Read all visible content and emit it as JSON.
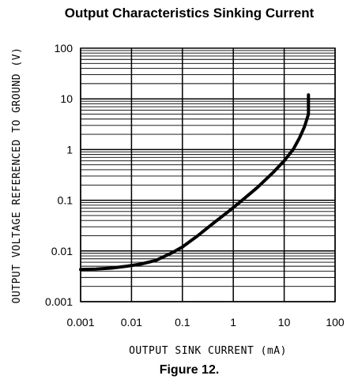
{
  "title": "Output Characteristics Sinking Current",
  "caption": "Figure 12.",
  "chart_data": {
    "type": "line",
    "title": "Output Characteristics Sinking Current",
    "xlabel": "OUTPUT SINK CURRENT (mA)",
    "ylabel": "OUTPUT VOLTAGE REFERENCED TO GROUND (V)",
    "xscale": "log",
    "yscale": "log",
    "xlim": [
      0.001,
      100
    ],
    "ylim": [
      0.001,
      100
    ],
    "xticks": [
      "0.001",
      "0.01",
      "0.1",
      "1",
      "10",
      "100"
    ],
    "yticks": [
      "0.001",
      "0.01",
      "0.1",
      "1",
      "10",
      "100"
    ],
    "grid": true,
    "series": [
      {
        "x": [
          0.001,
          0.002,
          0.004,
          0.008,
          0.015,
          0.03,
          0.06,
          0.1,
          0.2,
          0.4,
          0.8,
          1.5,
          3,
          6,
          10,
          15,
          20,
          25,
          28,
          30,
          30,
          30
        ],
        "y": [
          0.0043,
          0.0044,
          0.0046,
          0.005,
          0.0055,
          0.0065,
          0.009,
          0.012,
          0.02,
          0.035,
          0.06,
          0.1,
          0.18,
          0.35,
          0.6,
          1.0,
          1.7,
          2.8,
          4.0,
          5.0,
          8.0,
          12.0
        ]
      }
    ]
  }
}
